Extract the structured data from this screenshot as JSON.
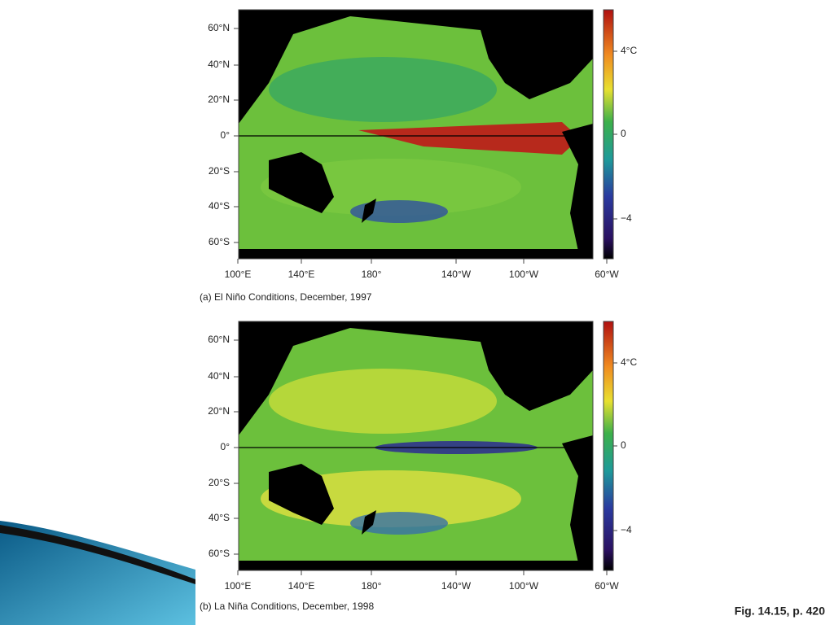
{
  "panels": [
    {
      "lat_labels": [
        "60°N",
        "40°N",
        "20°N",
        "0°",
        "20°S",
        "40°S",
        "60°S"
      ],
      "lon_labels": [
        "100°E",
        "140°E",
        "180°",
        "140°W",
        "100°W",
        "60°W"
      ],
      "colorbar_labels": [
        "4°C",
        "0",
        "−4"
      ],
      "caption": "(a) El Niño Conditions, December, 1997"
    },
    {
      "lat_labels": [
        "60°N",
        "40°N",
        "20°N",
        "0°",
        "20°S",
        "40°S",
        "60°S"
      ],
      "lon_labels": [
        "100°E",
        "140°E",
        "180°",
        "140°W",
        "100°W",
        "60°W"
      ],
      "colorbar_labels": [
        "4°C",
        "0",
        "−4"
      ],
      "caption": "(b) La Niña Conditions, December, 1998"
    }
  ],
  "footer": "Fig. 14.15, p. 420"
}
